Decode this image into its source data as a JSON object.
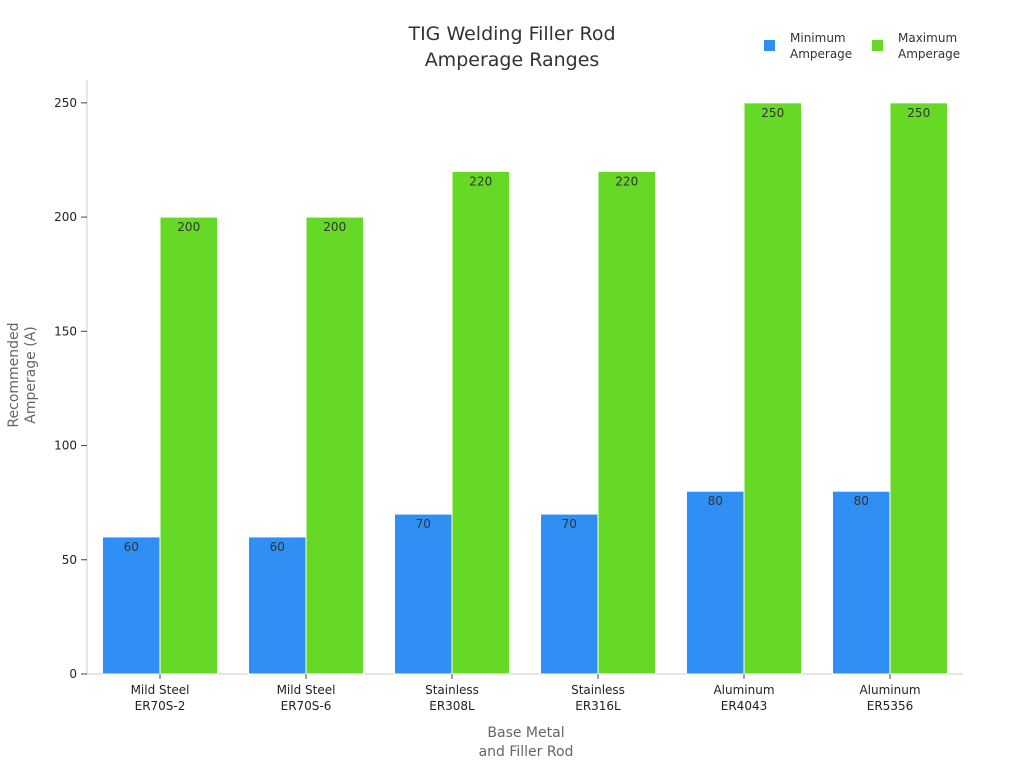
{
  "chart_data": {
    "type": "bar",
    "title": [
      "TIG Welding Filler Rod",
      "Amperage Ranges"
    ],
    "xlabel": [
      "Base Metal",
      "and Filler Rod"
    ],
    "ylabel": [
      "Recommended",
      "Amperage (A)"
    ],
    "categories": [
      [
        "Mild Steel",
        "ER70S-2"
      ],
      [
        "Mild Steel",
        "ER70S-6"
      ],
      [
        "Stainless",
        "ER308L"
      ],
      [
        "Stainless",
        "ER316L"
      ],
      [
        "Aluminum",
        "ER4043"
      ],
      [
        "Aluminum",
        "ER5356"
      ]
    ],
    "series": [
      {
        "name": [
          "Minimum",
          "Amperage"
        ],
        "values": [
          60,
          60,
          70,
          70,
          80,
          80
        ],
        "color": "#2f8ff5"
      },
      {
        "name": [
          "Maximum",
          "Amperage"
        ],
        "values": [
          200,
          200,
          220,
          220,
          250,
          250
        ],
        "color": "#66d926"
      }
    ],
    "ylim": [
      0,
      260
    ],
    "yticks": [
      0,
      50,
      100,
      150,
      200,
      250
    ],
    "grid": false,
    "legend_position": "top-right"
  }
}
